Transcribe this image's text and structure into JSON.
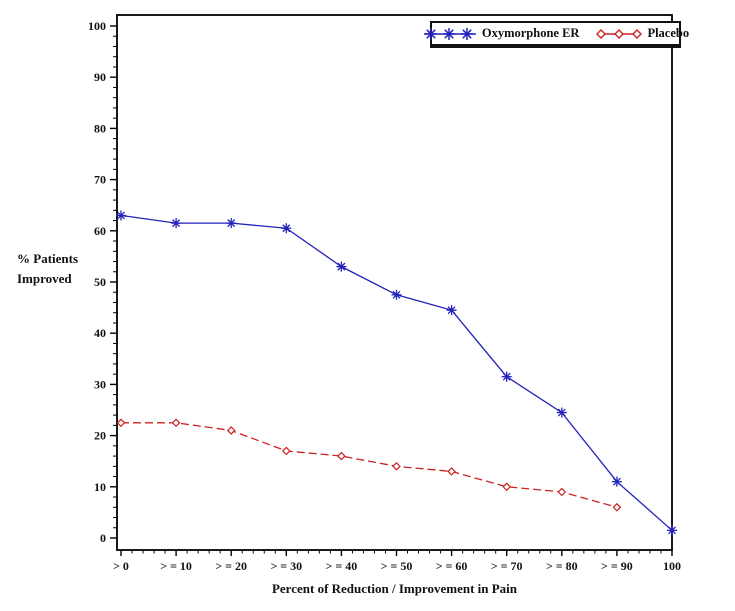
{
  "figure": {
    "background": "#ffffff",
    "frame_color": "#000000",
    "text_color": "#111111"
  },
  "chart_data": {
    "type": "line",
    "title": "",
    "xlabel": "Percent of Reduction / Improvement in Pain",
    "ylabel": "% Patients Improved",
    "ylabel_lines": [
      "% Patients",
      "Improved"
    ],
    "categories": [
      "> 0",
      "> = 10",
      "> = 20",
      "> = 30",
      "> = 40",
      "> = 50",
      "> = 60",
      "> = 70",
      "> = 80",
      "> = 90",
      "100"
    ],
    "y_axis": {
      "min": 0,
      "max": 100,
      "major_step": 10,
      "minor_step": 2,
      "ticks": [
        0,
        10,
        20,
        30,
        40,
        50,
        60,
        70,
        80,
        90,
        100
      ]
    },
    "grid": false,
    "legend_position": "top-right-inside",
    "series": [
      {
        "name": "Oxymorphone ER",
        "color": "#2222bb",
        "marker": "star",
        "line_style": "solid",
        "values": [
          63,
          61.5,
          61.5,
          60.5,
          53,
          47.5,
          44.5,
          31.5,
          24.5,
          11,
          1.5
        ]
      },
      {
        "name": "Placebo",
        "color": "#cc2222",
        "marker": "open-diamond",
        "line_style": "dashed",
        "values": [
          22.5,
          22.5,
          21,
          17,
          16,
          14,
          13,
          10,
          9,
          6
        ]
      }
    ]
  }
}
